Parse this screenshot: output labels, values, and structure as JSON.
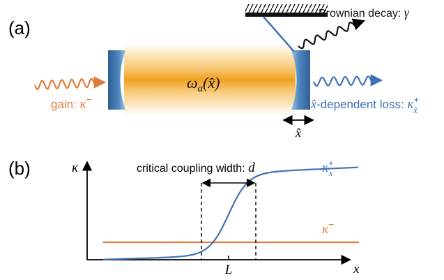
{
  "panel_a": {
    "label": "(a)",
    "brownian_decay": {
      "text": "Brownian decay: ",
      "symbol": "γ"
    },
    "cavity_frequency": {
      "symbol": "ω",
      "subscript": "a",
      "argument": "(x̂)"
    },
    "gain": {
      "text": "gain: ",
      "symbol": "κ",
      "superscript": "−"
    },
    "loss": {
      "prefix": "x̂",
      "text": "-dependent loss: ",
      "symbol": "κ",
      "superscript": "+",
      "subscript": "x̂"
    },
    "displacement": "x̂"
  },
  "panel_b": {
    "label": "(b)",
    "y_axis_label": "κ",
    "x_axis_label": "x",
    "x_tick": "L",
    "width_annotation": {
      "text": "critical coupling width: ",
      "symbol": "d"
    },
    "loss_curve": {
      "symbol": "κ",
      "superscript": "+",
      "subscript": "x"
    },
    "gain_curve": {
      "symbol": "κ",
      "superscript": "−"
    }
  }
}
